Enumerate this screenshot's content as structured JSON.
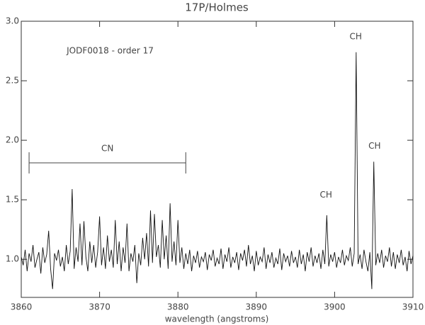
{
  "chart_data": {
    "type": "line",
    "title": "17P/Holmes",
    "x_label": "wavelength (angstroms)",
    "color": "#111111",
    "xlim": [
      3860,
      3910
    ],
    "ylim": [
      0.68,
      3.0
    ],
    "xticks": [
      3860,
      3870,
      3880,
      3890,
      3900,
      3910
    ],
    "yticks": [
      {
        "value": 1.0,
        "label": "1.0"
      },
      1.5,
      {
        "value": 2.0,
        "label": "2.0"
      },
      2.5,
      {
        "value": 3.0,
        "label": "3.0"
      }
    ],
    "x": [
      3860,
      3860.25,
      3860.5,
      3860.75,
      3861,
      3861.25,
      3861.5,
      3861.75,
      3862,
      3862.25,
      3862.5,
      3862.75,
      3863,
      3863.25,
      3863.5,
      3863.75,
      3864,
      3864.25,
      3864.5,
      3864.75,
      3865,
      3865.25,
      3865.5,
      3865.75,
      3866,
      3866.25,
      3866.5,
      3866.75,
      3867,
      3867.25,
      3867.5,
      3867.75,
      3868,
      3868.25,
      3868.5,
      3868.75,
      3869,
      3869.25,
      3869.5,
      3869.75,
      3870,
      3870.25,
      3870.5,
      3870.75,
      3871,
      3871.25,
      3871.5,
      3871.75,
      3872,
      3872.25,
      3872.5,
      3872.75,
      3873,
      3873.25,
      3873.5,
      3873.75,
      3874,
      3874.25,
      3874.5,
      3874.75,
      3875,
      3875.25,
      3875.5,
      3875.75,
      3876,
      3876.25,
      3876.5,
      3876.75,
      3877,
      3877.25,
      3877.5,
      3877.75,
      3878,
      3878.25,
      3878.5,
      3878.75,
      3879,
      3879.25,
      3879.5,
      3879.75,
      3880,
      3880.25,
      3880.5,
      3880.75,
      3881,
      3881.25,
      3881.5,
      3881.75,
      3882,
      3882.25,
      3882.5,
      3882.75,
      3883,
      3883.25,
      3883.5,
      3883.75,
      3884,
      3884.25,
      3884.5,
      3884.75,
      3885,
      3885.25,
      3885.5,
      3885.75,
      3886,
      3886.25,
      3886.5,
      3886.75,
      3887,
      3887.25,
      3887.5,
      3887.75,
      3888,
      3888.25,
      3888.5,
      3888.75,
      3889,
      3889.25,
      3889.5,
      3889.75,
      3890,
      3890.25,
      3890.5,
      3890.75,
      3891,
      3891.25,
      3891.5,
      3891.75,
      3892,
      3892.25,
      3892.5,
      3892.75,
      3893,
      3893.25,
      3893.5,
      3893.75,
      3894,
      3894.25,
      3894.5,
      3894.75,
      3895,
      3895.25,
      3895.5,
      3895.75,
      3896,
      3896.25,
      3896.5,
      3896.75,
      3897,
      3897.25,
      3897.5,
      3897.75,
      3898,
      3898.25,
      3898.5,
      3898.75,
      3899,
      3899.25,
      3899.5,
      3899.75,
      3900,
      3900.25,
      3900.5,
      3900.75,
      3901,
      3901.25,
      3901.5,
      3901.75,
      3902,
      3902.25,
      3902.5,
      3902.75,
      3903,
      3903.25,
      3903.5,
      3903.75,
      3904,
      3904.25,
      3904.5,
      3904.75,
      3905,
      3905.25,
      3905.5,
      3905.75,
      3906,
      3906.25,
      3906.5,
      3906.75,
      3907,
      3907.25,
      3907.5,
      3907.75,
      3908,
      3908.25,
      3908.5,
      3908.75,
      3909,
      3909.25,
      3909.5,
      3909.75,
      3910
    ],
    "values": [
      1.02,
      0.95,
      1.08,
      0.9,
      1.05,
      0.98,
      1.12,
      0.93,
      1.0,
      1.06,
      0.88,
      1.1,
      0.97,
      1.04,
      1.24,
      0.92,
      0.75,
      1.05,
      0.99,
      1.08,
      0.94,
      1.02,
      0.9,
      1.12,
      0.96,
      1.07,
      1.59,
      0.92,
      1.1,
      0.98,
      1.3,
      0.95,
      1.32,
      1.02,
      0.9,
      1.15,
      0.97,
      1.12,
      0.93,
      1.06,
      1.36,
      0.95,
      1.1,
      0.92,
      1.2,
      0.98,
      1.08,
      0.93,
      1.33,
      0.96,
      1.15,
      0.9,
      1.1,
      0.97,
      1.3,
      0.9,
      1.05,
      0.98,
      1.12,
      0.8,
      1.05,
      0.95,
      1.18,
      1.0,
      1.22,
      0.94,
      1.41,
      0.97,
      1.38,
      1.02,
      1.12,
      0.93,
      1.33,
      1.0,
      1.2,
      0.92,
      1.47,
      0.98,
      1.15,
      0.95,
      1.33,
      0.97,
      1.1,
      0.92,
      1.05,
      0.96,
      1.08,
      0.9,
      1.03,
      0.97,
      1.07,
      0.93,
      1.02,
      0.98,
      1.06,
      0.91,
      1.04,
      0.99,
      1.08,
      0.94,
      1.01,
      0.96,
      1.09,
      0.92,
      1.04,
      0.98,
      1.1,
      0.93,
      1.02,
      0.97,
      1.06,
      0.91,
      1.05,
      0.99,
      1.08,
      0.94,
      1.12,
      0.96,
      1.03,
      0.9,
      1.07,
      0.95,
      1.02,
      0.98,
      1.1,
      0.92,
      1.04,
      0.97,
      1.06,
      0.93,
      1.01,
      0.96,
      1.09,
      0.91,
      1.05,
      0.98,
      1.03,
      0.94,
      1.07,
      0.97,
      1.02,
      0.93,
      1.08,
      0.96,
      1.04,
      0.9,
      1.06,
      0.98,
      1.1,
      0.94,
      1.03,
      0.97,
      1.05,
      0.92,
      1.08,
      0.96,
      1.37,
      0.94,
      1.04,
      0.98,
      1.06,
      0.93,
      1.02,
      0.97,
      1.08,
      0.95,
      1.03,
      0.99,
      1.1,
      0.94,
      1.05,
      2.74,
      0.96,
      1.04,
      0.92,
      1.08,
      0.98,
      0.9,
      1.06,
      0.75,
      1.82,
      0.95,
      1.05,
      0.97,
      1.08,
      0.93,
      1.03,
      0.98,
      1.1,
      0.94,
      1.06,
      0.92,
      1.04,
      0.97,
      1.08,
      0.95,
      1.02,
      0.9,
      1.07,
      0.96,
      1.03
    ],
    "annotations": [
      {
        "text": "JODF0018 - order 17",
        "x": 3865.8,
        "y": 2.75
      },
      {
        "text": "CN",
        "x": 3871,
        "y": 1.93
      },
      {
        "text": "CH",
        "x": 3898.9,
        "y": 1.54
      },
      {
        "text": "CH",
        "x": 3902.7,
        "y": 2.87
      },
      {
        "text": "CH",
        "x": 3905.1,
        "y": 1.95
      }
    ],
    "bracket": {
      "x": [
        3861,
        3881
      ],
      "y": 1.81
    }
  }
}
